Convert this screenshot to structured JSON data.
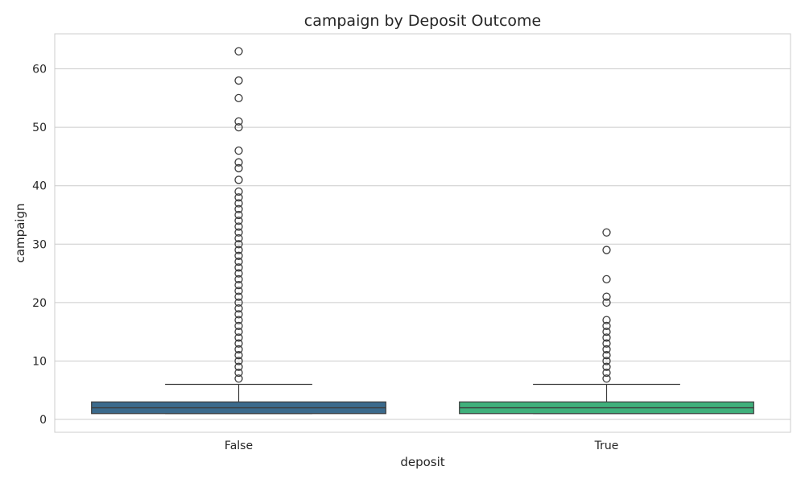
{
  "chart_data": {
    "type": "box",
    "title": "campaign by Deposit Outcome",
    "xlabel": "deposit",
    "ylabel": "campaign",
    "categories": [
      "False",
      "True"
    ],
    "ylim": [
      -2.2,
      66
    ],
    "yticks": [
      0,
      10,
      20,
      30,
      40,
      50,
      60
    ],
    "grid": "horizontal",
    "colors": [
      "#3b6a8c",
      "#3fb07b"
    ],
    "boxes": [
      {
        "category": "False",
        "min": 1,
        "q1": 1,
        "median": 2,
        "q3": 3,
        "whisker_high": 6,
        "outliers": [
          7,
          8,
          9,
          10,
          11,
          12,
          13,
          14,
          15,
          16,
          17,
          18,
          19,
          20,
          21,
          22,
          23,
          24,
          25,
          26,
          27,
          28,
          29,
          30,
          31,
          32,
          33,
          34,
          35,
          36,
          37,
          38,
          39,
          41,
          43,
          44,
          46,
          50,
          51,
          55,
          58,
          63
        ]
      },
      {
        "category": "True",
        "min": 1,
        "q1": 1,
        "median": 2,
        "q3": 3,
        "whisker_high": 6,
        "outliers": [
          7,
          8,
          9,
          10,
          11,
          12,
          13,
          14,
          15,
          16,
          17,
          20,
          21,
          24,
          29,
          32
        ]
      }
    ]
  }
}
